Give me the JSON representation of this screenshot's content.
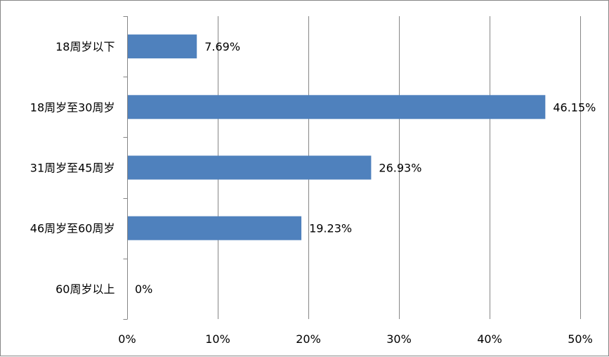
{
  "chart_data": {
    "type": "bar",
    "orientation": "horizontal",
    "title": "",
    "xlabel": "",
    "ylabel": "",
    "categories": [
      "18周岁以下",
      "18周岁至30周岁",
      "31周岁至45周岁",
      "46周岁至60周岁",
      "60周岁以上"
    ],
    "values": [
      7.69,
      46.15,
      26.93,
      19.23,
      0
    ],
    "data_labels": [
      "7.69%",
      "46.15%",
      "26.93%",
      "19.23%",
      "0%"
    ],
    "xlim": [
      0,
      50
    ],
    "x_ticks": [
      0,
      10,
      20,
      30,
      40,
      50
    ],
    "x_tick_labels": [
      "0%",
      "10%",
      "20%",
      "30%",
      "40%",
      "50%"
    ],
    "grid": "vertical",
    "legend": "none",
    "colors": {
      "bar": "#4F81BD",
      "gridline": "#868686",
      "axis": "#868686",
      "border": "#868686"
    }
  }
}
